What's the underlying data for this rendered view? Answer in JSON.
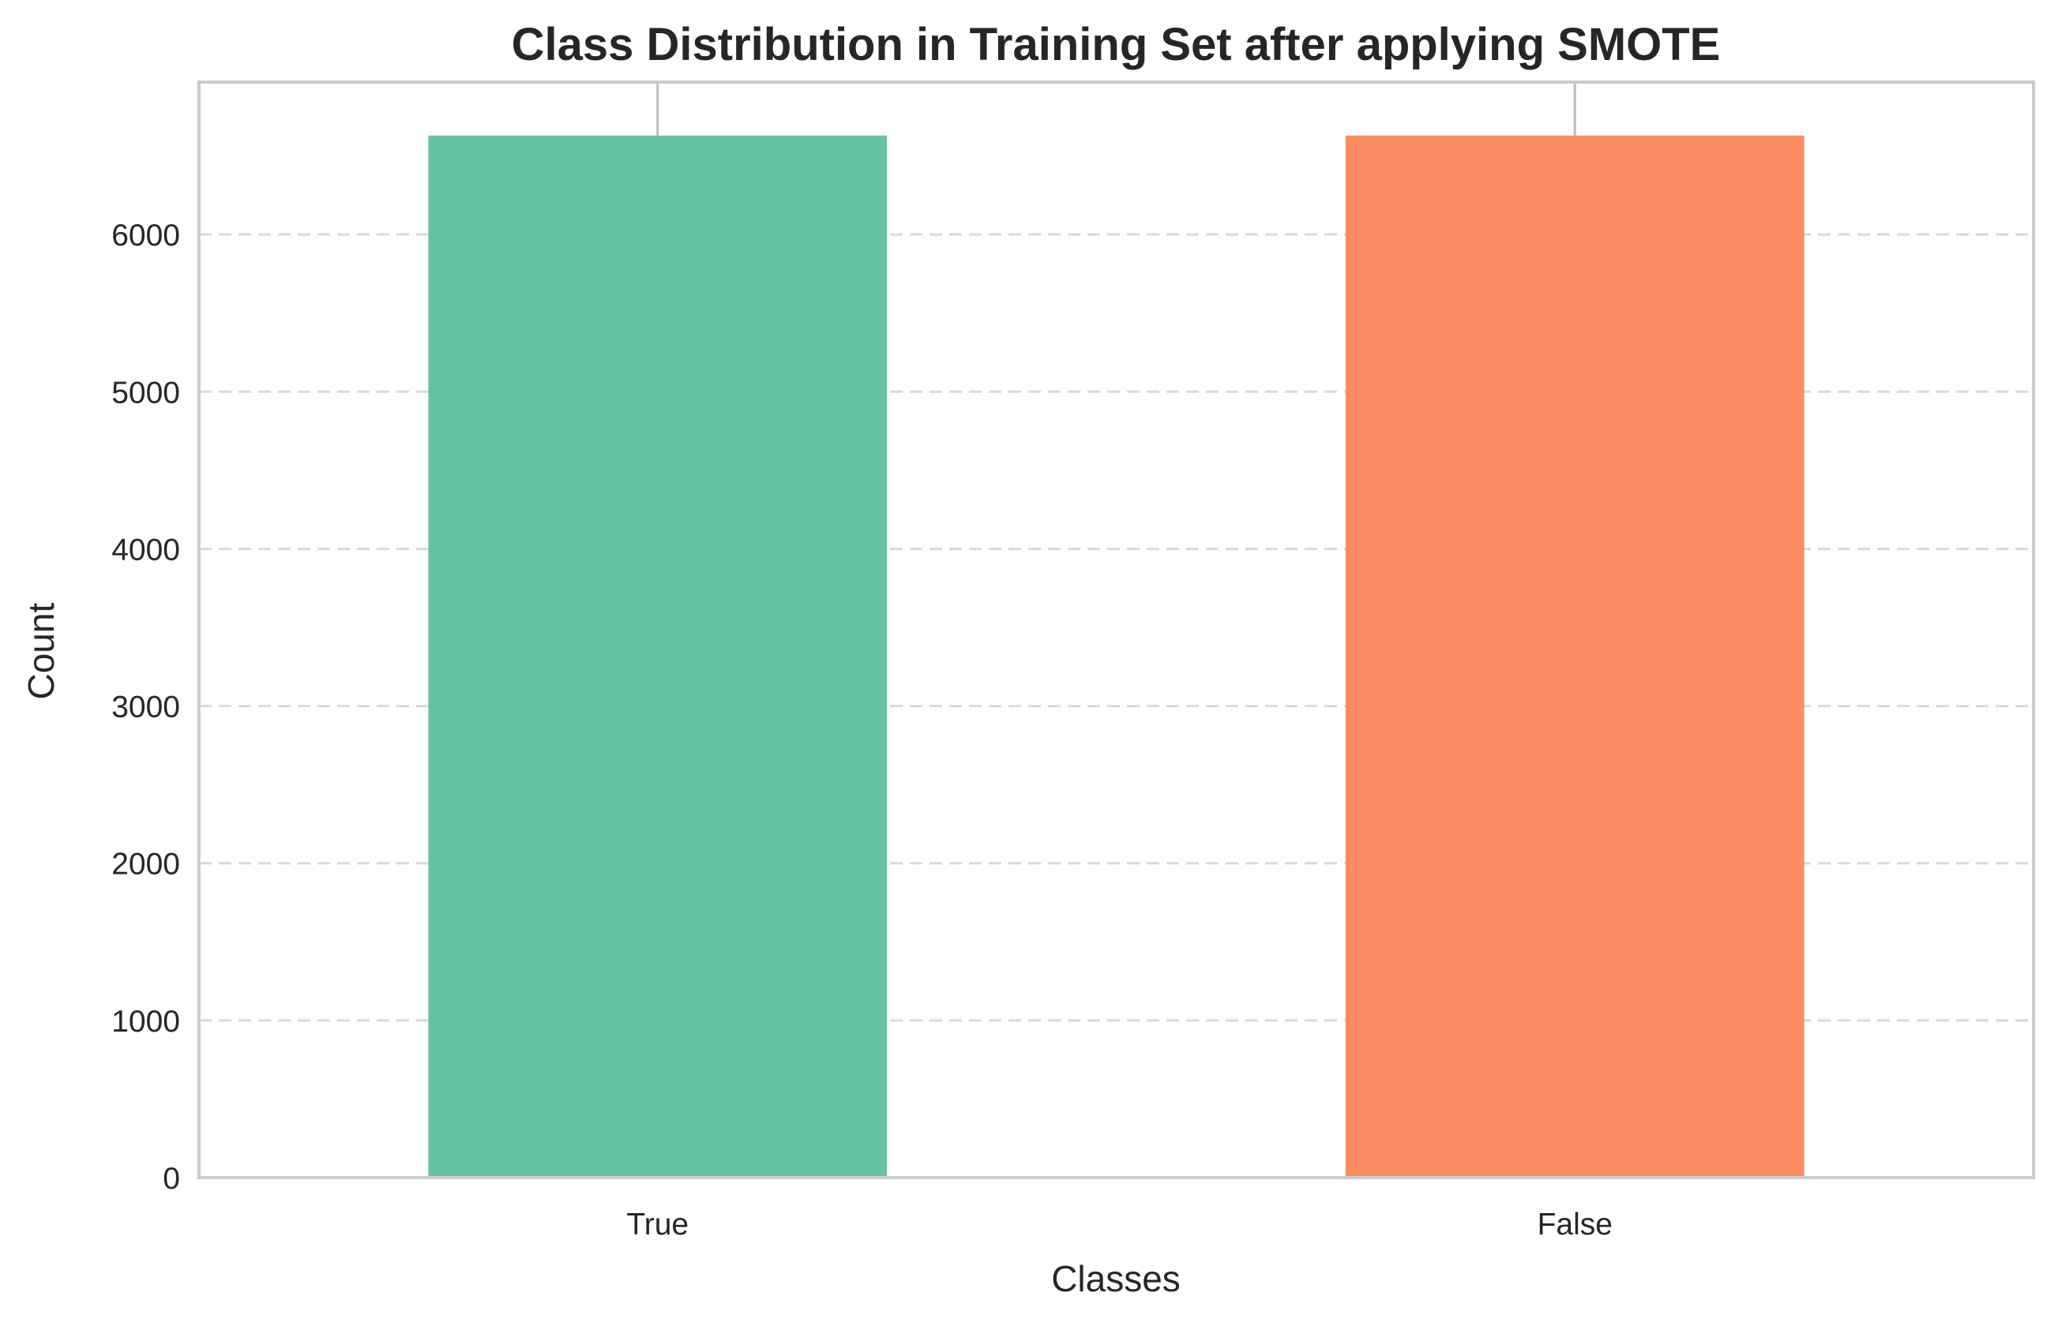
{
  "chart_data": {
    "type": "bar",
    "title": "Class Distribution in Training Set after applying SMOTE",
    "xlabel": "Classes",
    "ylabel": "Count",
    "categories": [
      "True",
      "False"
    ],
    "values": [
      6630,
      6630
    ],
    "colors": [
      "#66c2a5",
      "#fc8d62"
    ],
    "ylim": [
      0,
      6970
    ],
    "yticks": [
      0,
      1000,
      2000,
      3000,
      4000,
      5000,
      6000
    ],
    "grid": "y-dashed",
    "legend": "none"
  }
}
